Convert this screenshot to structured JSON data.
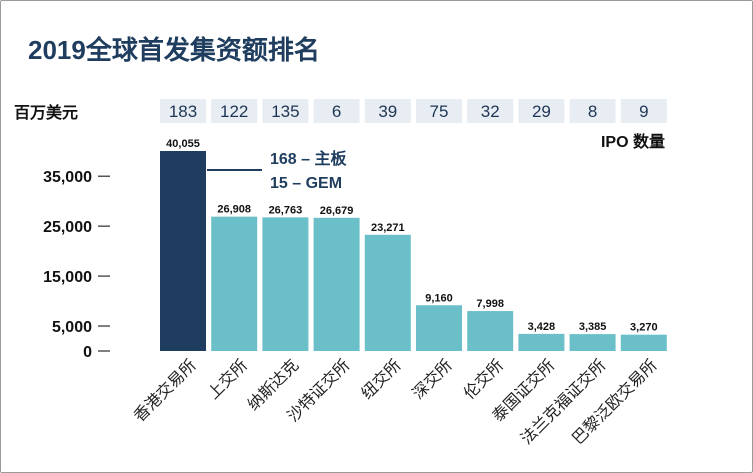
{
  "chart_data": {
    "type": "bar",
    "title": "2019全球首发集资额排名",
    "ylabel": "百万美元",
    "ylim": [
      0,
      40055
    ],
    "yticks": [
      0,
      5000,
      15000,
      25000,
      35000
    ],
    "ytick_labels": [
      "0",
      "5,000",
      "15,000",
      "25,000",
      "35,000"
    ],
    "categories": [
      "香港交易所",
      "上交所",
      "纳斯达克",
      "沙特证交所",
      "纽交所",
      "深交所",
      "伦交所",
      "泰国证交所",
      "法兰克福证交所",
      "巴黎泛欧交易所"
    ],
    "values": [
      40055,
      26908,
      26763,
      26679,
      23271,
      9160,
      7998,
      3428,
      3385,
      3270
    ],
    "value_labels": [
      "40,055",
      "26,908",
      "26,763",
      "26,679",
      "23,271",
      "9,160",
      "7,998",
      "3,428",
      "3,385",
      "3,270"
    ],
    "ipo_counts": [
      "183",
      "122",
      "135",
      "6",
      "39",
      "75",
      "32",
      "29",
      "8",
      "9"
    ],
    "ipo_caption": "IPO 数量",
    "highlight_index": 0,
    "colors": {
      "highlight": "#1f3d5e",
      "bar": "#6bbfc9",
      "ipo_box": "#e8edf3",
      "title": "#1f3d5e"
    },
    "annotation": {
      "line1": "168 – 主板",
      "line2": "15 – GEM"
    }
  }
}
